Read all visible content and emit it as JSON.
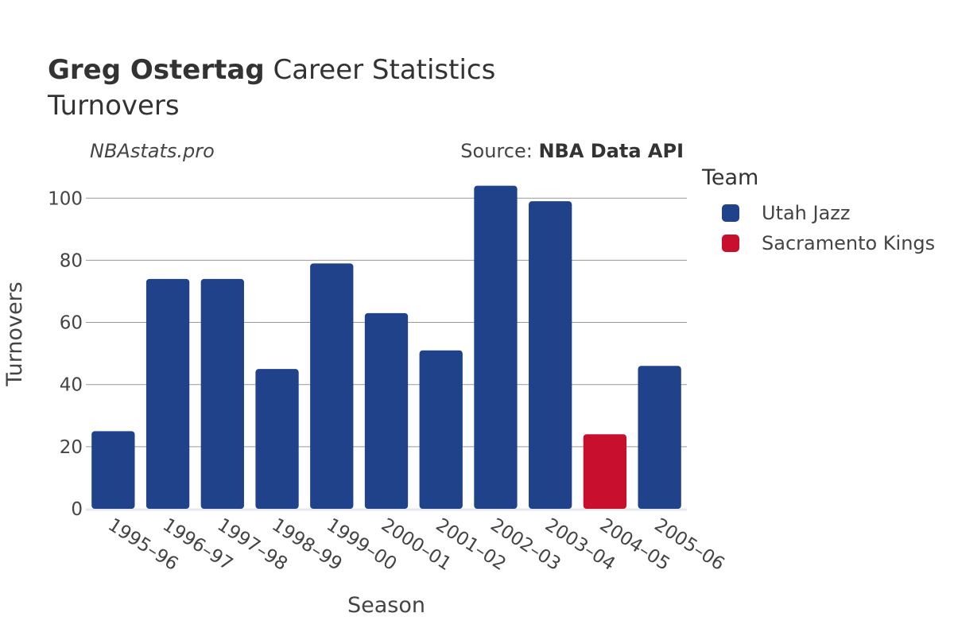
{
  "header": {
    "title_bold": "Greg Ostertag",
    "title_rest": " Career Statistics",
    "subtitle": "Turnovers",
    "watermark": "NBAstats.pro",
    "source_prefix": "Source: ",
    "source_bold": "NBA Data API"
  },
  "legend": {
    "title": "Team",
    "items": [
      {
        "label": "Utah Jazz",
        "color": "#1f428a"
      },
      {
        "label": "Sacramento Kings",
        "color": "#c8102e"
      }
    ]
  },
  "chart_data": {
    "type": "bar",
    "title": "Greg Ostertag Career Statistics",
    "subtitle": "Turnovers",
    "xlabel": "Season",
    "ylabel": "Turnovers",
    "ylim": [
      0,
      108
    ],
    "yticks": [
      0,
      20,
      40,
      60,
      80,
      100
    ],
    "grid": true,
    "legend_position": "right",
    "categories": [
      "1995–96",
      "1996–97",
      "1997–98",
      "1998–99",
      "1999–00",
      "2000–01",
      "2001–02",
      "2002–03",
      "2003–04",
      "2004–05",
      "2005–06"
    ],
    "values": [
      25,
      74,
      74,
      45,
      79,
      63,
      51,
      104,
      99,
      24,
      46
    ],
    "teams": [
      "Utah Jazz",
      "Utah Jazz",
      "Utah Jazz",
      "Utah Jazz",
      "Utah Jazz",
      "Utah Jazz",
      "Utah Jazz",
      "Utah Jazz",
      "Utah Jazz",
      "Sacramento Kings",
      "Utah Jazz"
    ],
    "series": [
      {
        "name": "Utah Jazz",
        "color": "#1f428a"
      },
      {
        "name": "Sacramento Kings",
        "color": "#c8102e"
      }
    ]
  }
}
